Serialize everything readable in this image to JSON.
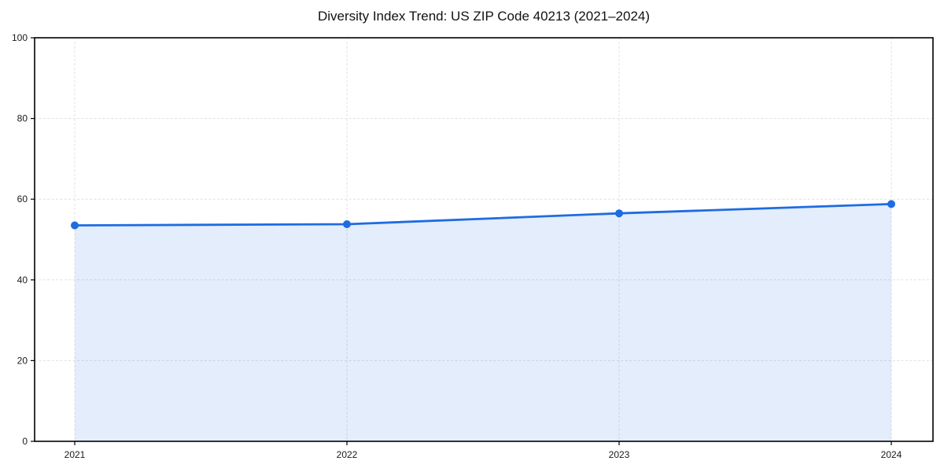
{
  "chart_data": {
    "type": "area",
    "title": "Diversity Index Trend: US ZIP Code 40213 (2021–2024)",
    "categories": [
      "2021",
      "2022",
      "2023",
      "2024"
    ],
    "values": [
      53.5,
      53.8,
      56.5,
      58.8
    ],
    "xlabel": "",
    "ylabel": "",
    "ylim": [
      0,
      100
    ],
    "yticks": [
      0,
      20,
      40,
      60,
      80,
      100
    ],
    "grid": true,
    "grid_style": "dashed",
    "legend": false,
    "line_color": "#1e6ce1",
    "marker": "circle",
    "fill_color": "#1e6ce1",
    "fill_opacity": 0.12,
    "grid_color": "#e0e0e0",
    "spine_color": "#000000",
    "background_color": "#ffffff"
  }
}
